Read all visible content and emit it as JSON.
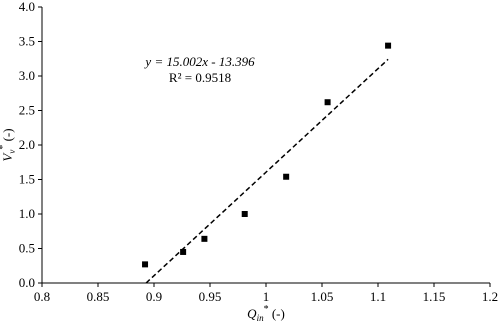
{
  "chart_data": {
    "type": "scatter",
    "x": [
      0.892,
      0.926,
      0.945,
      0.981,
      1.018,
      1.055,
      1.109
    ],
    "values": [
      0.27,
      0.45,
      0.64,
      1.0,
      1.54,
      2.62,
      3.44
    ],
    "color": "#000000",
    "xlim": [
      0.8,
      1.2
    ],
    "xticks": [
      0.8,
      0.85,
      0.9,
      0.95,
      1,
      1.05,
      1.1,
      1.15,
      1.2
    ],
    "ylim": [
      0,
      4
    ],
    "yticks": [
      {
        "value": 0,
        "label": "0.0"
      },
      {
        "value": 0.5,
        "label": "0.5"
      },
      {
        "value": 1,
        "label": "1.0"
      },
      {
        "value": 1.5,
        "label": "1.5"
      },
      {
        "value": 2,
        "label": "2.0"
      },
      {
        "value": 2.5,
        "label": "2.5"
      },
      {
        "value": 3,
        "label": "3.0"
      },
      {
        "value": 3.5,
        "label": "3.5"
      },
      {
        "value": 4,
        "label": "4.0"
      }
    ],
    "grid": false,
    "trendline": {
      "slope": 15.002,
      "intercept": -13.396,
      "equation": "y = 15.002x - 13.396",
      "r2": "R² = 0.9518"
    },
    "x_label": {
      "main": "Q",
      "sub": "in",
      "sup": "*",
      "unit": " (-)"
    },
    "y_label": {
      "main": "V",
      "sub": "v",
      "sup": "*",
      "unit": " (-)"
    }
  }
}
